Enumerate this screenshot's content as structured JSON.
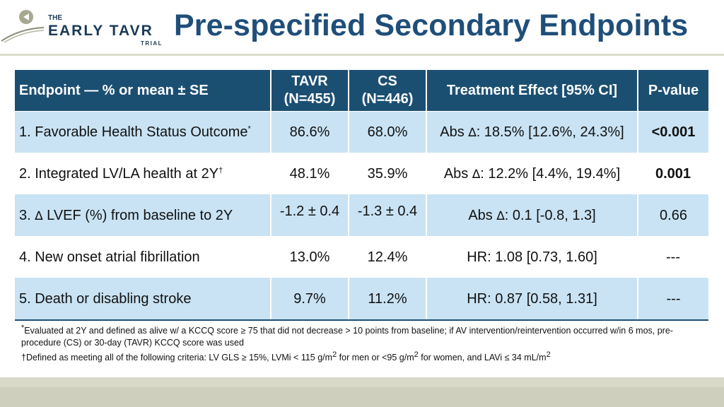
{
  "header": {
    "title": "Pre-specified Secondary Endpoints",
    "logo": {
      "line1": "THE",
      "line2": "EARLY TAVR",
      "line3": "TRIAL"
    }
  },
  "table": {
    "columns": [
      "Endpoint — % or mean ± SE",
      "TAVR\n(N=455)",
      "CS\n(N=446)",
      "Treatment Effect [95% CI]",
      "P-value"
    ],
    "col_labels": {
      "endpoint": "Endpoint — % or mean ± SE",
      "tavr_name": "TAVR",
      "tavr_n": "(N=455)",
      "cs_name": "CS",
      "cs_n": "(N=446)",
      "effect": "Treatment Effect [95% CI]",
      "pvalue": "P-value"
    },
    "rows": [
      {
        "endpoint": "1. Favorable Health Status Outcome",
        "endpoint_mark": "*",
        "tavr": "86.6%",
        "cs": "68.0%",
        "effect_prefix": "Abs ",
        "effect_symbol": "∆",
        "effect_value": ": 18.5% [12.6%, 24.3%]",
        "p": "<0.001",
        "p_significant": true
      },
      {
        "endpoint": "2. Integrated LV/LA health at 2Y",
        "endpoint_mark": "†",
        "tavr": "48.1%",
        "cs": "35.9%",
        "effect_prefix": "Abs ",
        "effect_symbol": "∆",
        "effect_value": ": 12.2% [4.4%, 19.4%]",
        "p": "0.001",
        "p_significant": true
      },
      {
        "endpoint_prefix": "3. ",
        "endpoint_symbol": "∆",
        "endpoint": " LVEF (%) from baseline to 2Y",
        "tavr": "-1.2 ± 0.4",
        "cs": "-1.3 ± 0.4",
        "effect_prefix": "Abs ",
        "effect_symbol": "∆",
        "effect_value": ": 0.1 [-0.8, 1.3]",
        "p": "0.66",
        "p_significant": false
      },
      {
        "endpoint": "4. New onset atrial fibrillation",
        "tavr": "13.0%",
        "cs": "12.4%",
        "effect": "HR: 1.08 [0.73, 1.60]",
        "p": "---",
        "p_significant": false
      },
      {
        "endpoint": "5. Death or disabling stroke",
        "tavr": "9.7%",
        "cs": "11.2%",
        "effect": "HR: 0.87 [0.58, 1.31]",
        "p": "---",
        "p_significant": false
      }
    ]
  },
  "footnotes": {
    "note1_mark": "*",
    "note1": "Evaluated at 2Y and defined as alive w/ a KCCQ score ≥ 75 that did not decrease > 10 points from baseline; if AV intervention/reintervention occurred w/in 6 mos, pre-procedure (CS) or 30-day (TAVR) KCCQ score was used",
    "note2_mark": "†",
    "note2_a": "Defined as meeting all of the following criteria: LV GLS ≥ 15%, LVMi < 115 g/m",
    "note2_sup1": "2",
    "note2_b": " for men or <95 g/m",
    "note2_sup2": "2",
    "note2_c": " for women, and LAVi ≤ 34 mL/m",
    "note2_sup3": "2"
  },
  "colors": {
    "title": "#1f4e79",
    "header_fill": "#1b4f72",
    "row_light_blue": "#c9e3f4",
    "significant_p": "#1f4e79",
    "footer_band": "#d9d9c9"
  }
}
